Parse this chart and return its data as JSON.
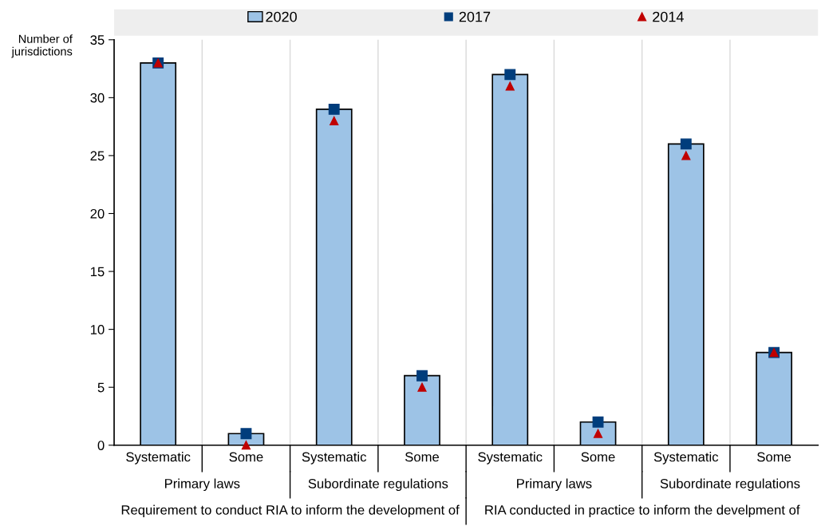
{
  "chart_data": {
    "type": "bar",
    "ylabel": "Number of\njurisdictions",
    "categories": [
      "Systematic",
      "Some",
      "Systematic",
      "Some",
      "Systematic",
      "Some",
      "Systematic",
      "Some"
    ],
    "series": [
      {
        "name": "2020",
        "color": "#9dc3e6",
        "values": [
          33,
          1,
          29,
          6,
          32,
          2,
          26,
          8
        ]
      },
      {
        "name": "2017",
        "type": "scatter",
        "marker": "square",
        "color": "#003d7c",
        "values": [
          33,
          1,
          29,
          6,
          32,
          2,
          26,
          8
        ]
      },
      {
        "name": "2014",
        "type": "scatter",
        "marker": "triangle",
        "color": "#c00000",
        "values": [
          33,
          0,
          28,
          5,
          31,
          1,
          25,
          8
        ]
      }
    ],
    "annotations": [
      "Primary laws",
      "Subordinate regulations",
      "Primary laws",
      "Subordinate regulations",
      "Requirement to conduct RIA to inform the development of",
      "RIA conducted in practice to inform the develpment of"
    ],
    "ylim": [
      0,
      35
    ],
    "yticks": [
      0,
      5,
      10,
      15,
      20,
      25,
      30,
      35
    ],
    "grid": "x",
    "legend": "top"
  }
}
